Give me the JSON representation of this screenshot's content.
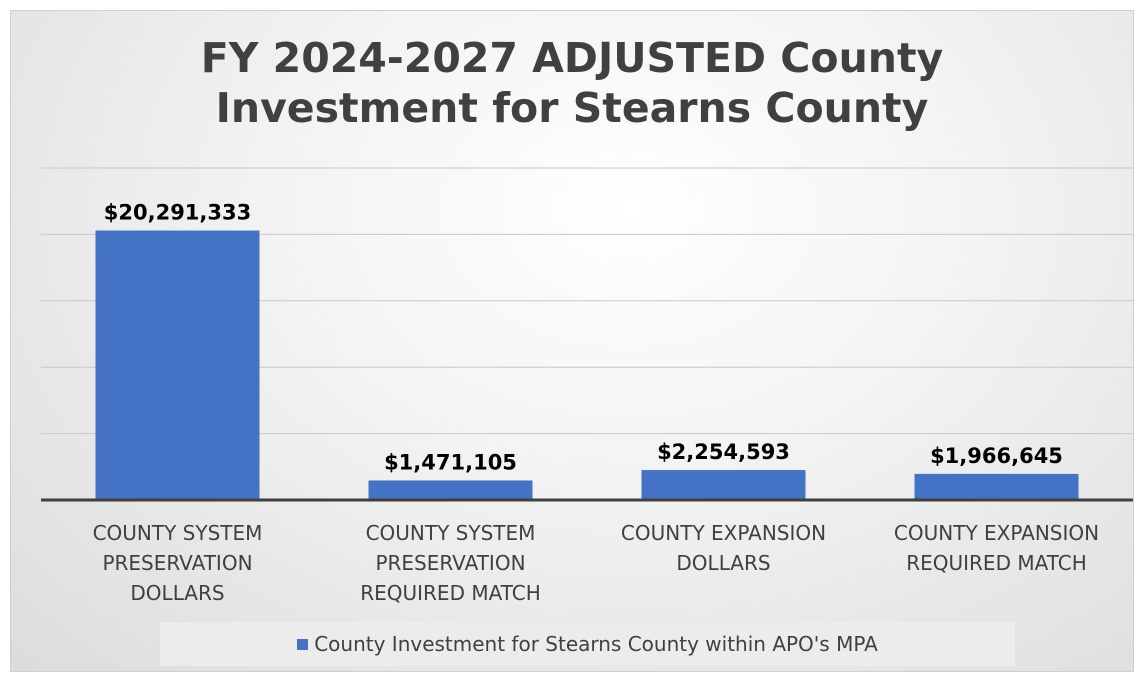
{
  "chart_data": {
    "type": "bar",
    "title": "FY 2024-2027 ADJUSTED County Investment for Stearns County",
    "title_lines": [
      "FY 2024-2027 ADJUSTED County",
      "Investment for Stearns County"
    ],
    "categories": [
      [
        "COUNTY SYSTEM",
        "PRESERVATION",
        "DOLLARS"
      ],
      [
        "COUNTY SYSTEM",
        "PRESERVATION",
        "REQUIRED MATCH"
      ],
      [
        "COUNTY EXPANSION",
        "DOLLARS"
      ],
      [
        "COUNTY EXPANSION",
        "REQUIRED MATCH"
      ]
    ],
    "series": [
      {
        "name": "County Investment for Stearns County within APO's MPA",
        "values": [
          20291333,
          1471105,
          2254593,
          1966645
        ]
      }
    ],
    "data_labels": [
      "$20,291,333",
      "$1,471,105",
      "$2,254,593",
      "$1,966,645"
    ],
    "ylim": [
      0,
      25000000
    ],
    "grid": true,
    "legend_position": "bottom",
    "colors": {
      "bar": "#4472c4",
      "gridline": "#c8c8c8",
      "axis": "#404040",
      "text": "#404040",
      "data_label": "#000000"
    }
  }
}
